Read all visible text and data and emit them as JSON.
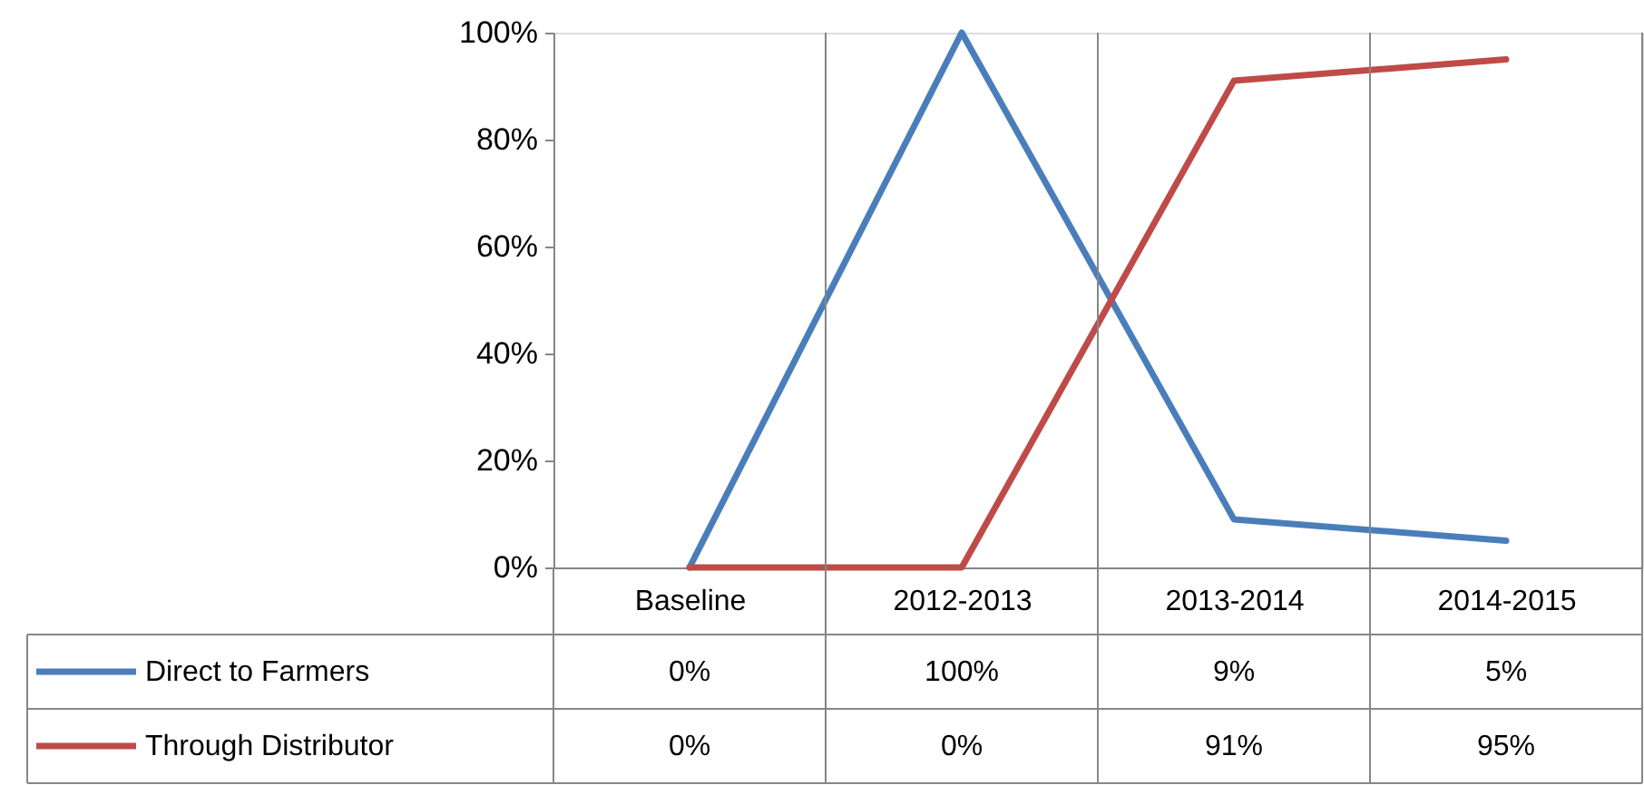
{
  "chart_data": {
    "type": "line",
    "categories": [
      "Baseline",
      "2012-2013",
      "2013-2014",
      "2014-2015"
    ],
    "series": [
      {
        "name": "Direct to Farmers",
        "color": "#4a7ebb",
        "values": [
          0,
          100,
          9,
          5
        ],
        "value_labels": [
          "0%",
          "100%",
          "9%",
          "5%"
        ]
      },
      {
        "name": "Through Distributor",
        "color": "#be4b48",
        "values": [
          0,
          0,
          91,
          95
        ],
        "value_labels": [
          "0%",
          "0%",
          "91%",
          "95%"
        ]
      }
    ],
    "ylim": [
      0,
      100
    ],
    "yticks": [
      {
        "value": 0,
        "label": "0%"
      },
      {
        "value": 20,
        "label": "20%"
      },
      {
        "value": 40,
        "label": "40%"
      },
      {
        "value": 60,
        "label": "60%"
      },
      {
        "value": 80,
        "label": "80%"
      },
      {
        "value": 100,
        "label": "100%"
      }
    ],
    "grid": "x",
    "legend": "bottom"
  }
}
